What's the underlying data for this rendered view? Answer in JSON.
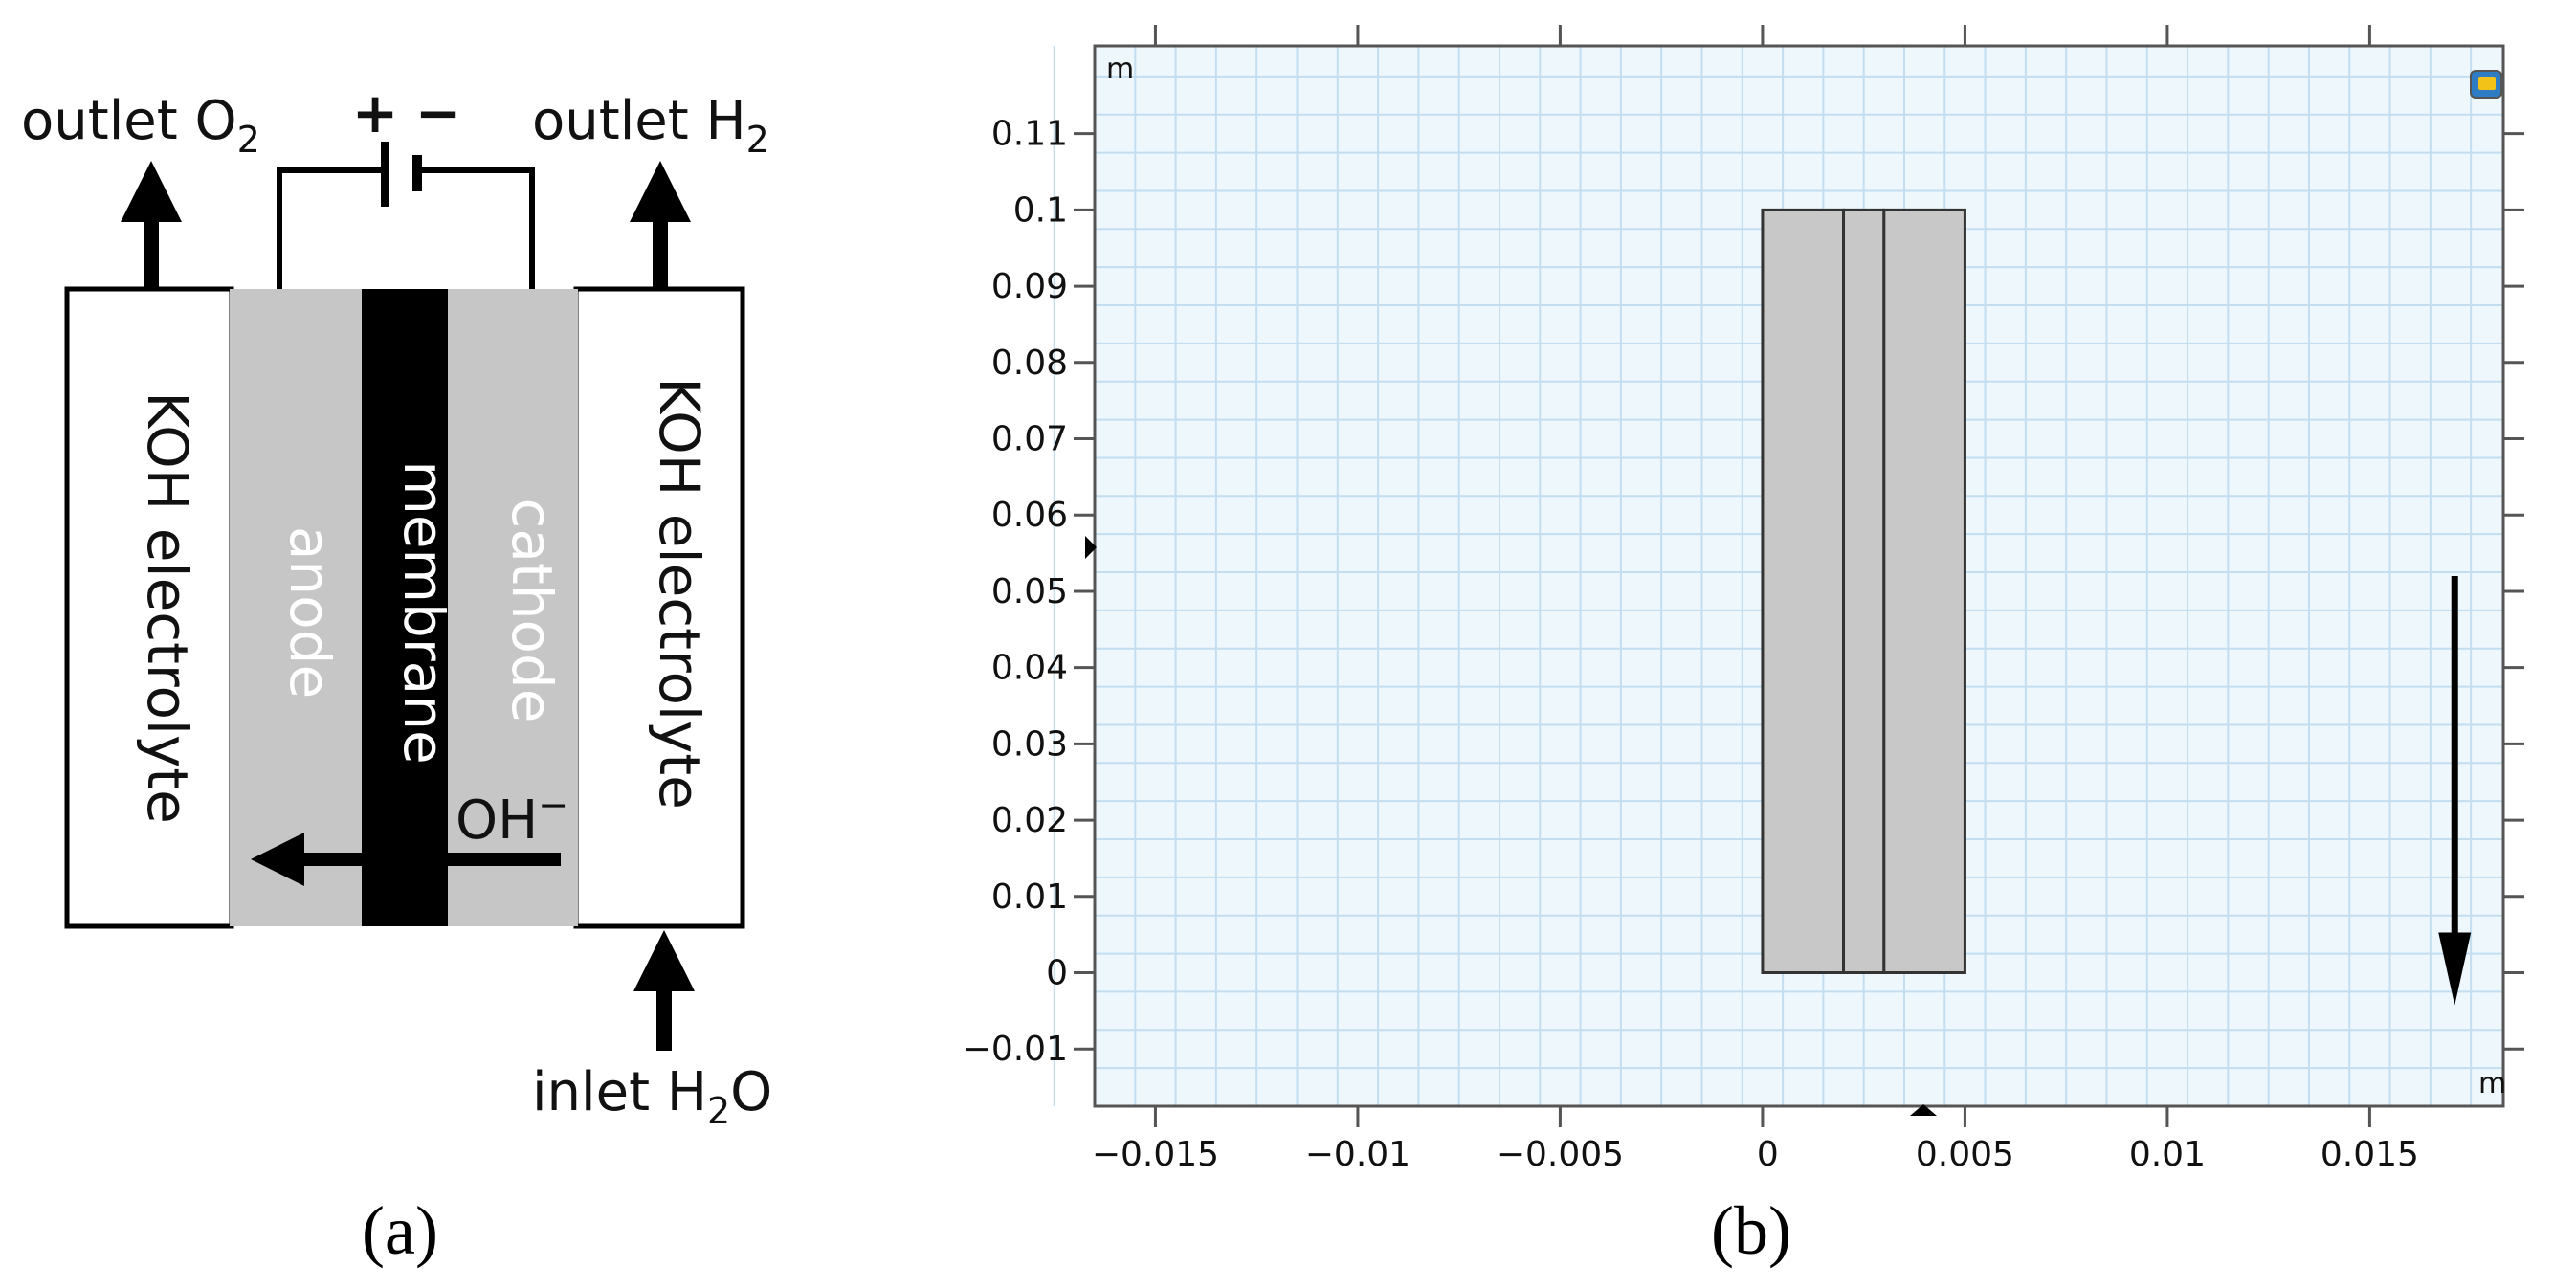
{
  "panel_a": {
    "outlet_o2": "outlet O",
    "outlet_o2_sub": "2",
    "outlet_h2": "outlet H",
    "outlet_h2_sub": "2",
    "inlet_h2o_pre": "inlet H",
    "inlet_h2o_sub": "2",
    "inlet_h2o_post": "O",
    "plus": "+",
    "minus": "−",
    "koh_left": "KOH electrolyte",
    "koh_right": "KOH electrolyte",
    "anode": "anode",
    "membrane": "membrane",
    "cathode": "cathode",
    "hydroxide": "OH",
    "hydroxide_sup": "−",
    "caption": "(a)"
  },
  "panel_b": {
    "unit_top_left": "m",
    "unit_bottom_right": "m",
    "caption": "(b)",
    "colors": {
      "background": "#eef7fc",
      "grid": "#c3def0",
      "domain_fill": "#c8c8c8"
    },
    "chart_data": {
      "type": "geometry",
      "x_ticks": [
        "-0.015",
        "-0.01",
        "-0.005",
        "0",
        "0.005",
        "0.01",
        "0.015"
      ],
      "y_ticks": [
        "0.11",
        "0.1",
        "0.09",
        "0.08",
        "0.07",
        "0.06",
        "0.05",
        "0.04",
        "0.03",
        "0.02",
        "0.01",
        "0",
        "-0.01"
      ],
      "xlim": [
        -0.0165,
        0.0183
      ],
      "ylim": [
        -0.0175,
        0.1215
      ],
      "domain_boundaries_x": [
        0,
        0.002,
        0.003,
        0.005
      ],
      "domain_y": [
        0,
        0.1
      ],
      "arrow": {
        "x": 0.0171,
        "y_from": 0.052,
        "y_to": -0.002
      }
    }
  }
}
